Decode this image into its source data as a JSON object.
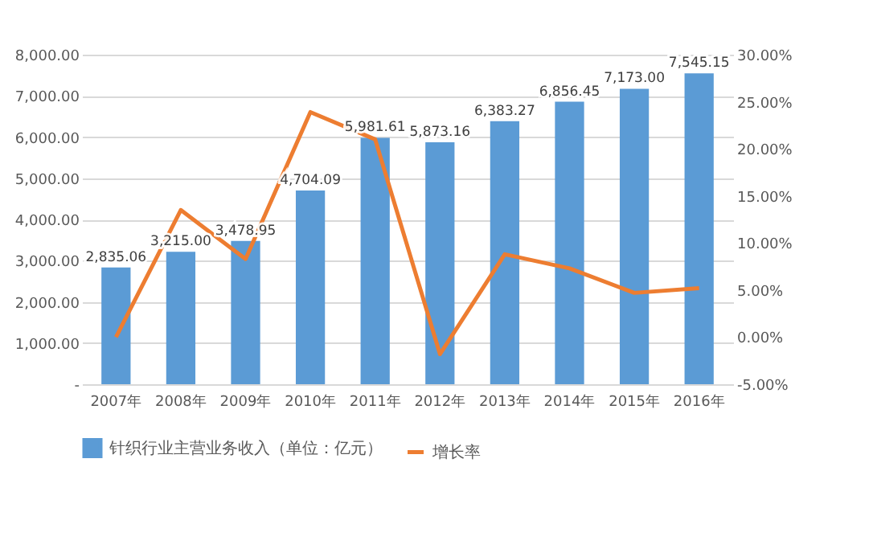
{
  "chart_data": {
    "type": "bar",
    "categories": [
      "2007年",
      "2008年",
      "2009年",
      "2010年",
      "2011年",
      "2012年",
      "2013年",
      "2014年",
      "2015年",
      "2016年"
    ],
    "series": [
      {
        "name": "针织行业主营业务收入（单位：亿元）",
        "color": "#5b9bd5",
        "values": [
          2835.06,
          3215.0,
          3478.95,
          4704.09,
          5981.61,
          5873.16,
          6383.27,
          6856.45,
          7173.0,
          7545.15
        ],
        "value_labels": [
          "2,835.06",
          "3,215.00",
          "3,478.95",
          "4,704.09",
          "5,981.61",
          "5,873.16",
          "6,383.27",
          "6,856.45",
          "7,173.00",
          "7,545.15"
        ]
      },
      {
        "name": "增长率",
        "type": "line",
        "axis": "y2",
        "color": "#ed7d31",
        "values": [
          0.0,
          13.5,
          8.3,
          23.9,
          21.0,
          -1.8,
          8.8,
          7.3,
          4.7,
          5.2
        ]
      }
    ],
    "ylim": [
      0,
      8000
    ],
    "yticks": [
      {
        "value": 0,
        "label": "-"
      },
      {
        "value": 1000,
        "label": "1,000.00"
      },
      {
        "value": 2000,
        "label": "2,000.00"
      },
      {
        "value": 3000,
        "label": "3,000.00"
      },
      {
        "value": 4000,
        "label": "4,000.00"
      },
      {
        "value": 5000,
        "label": "5,000.00"
      },
      {
        "value": 6000,
        "label": "6,000.00"
      },
      {
        "value": 7000,
        "label": "7,000.00"
      },
      {
        "value": 8000,
        "label": "8,000.00"
      }
    ],
    "y2lim": [
      -5,
      30
    ],
    "y2ticks": [
      {
        "value": -5,
        "label": "-5.00%"
      },
      {
        "value": 0,
        "label": "0.00%"
      },
      {
        "value": 5,
        "label": "5.00%"
      },
      {
        "value": 10,
        "label": "10.00%"
      },
      {
        "value": 15,
        "label": "15.00%"
      },
      {
        "value": 20,
        "label": "20.00%"
      },
      {
        "value": 25,
        "label": "25.00%"
      },
      {
        "value": 30,
        "label": "30.00%"
      }
    ],
    "grid": "y",
    "legend": "bottom",
    "marker": "none",
    "line_style": "solid"
  }
}
